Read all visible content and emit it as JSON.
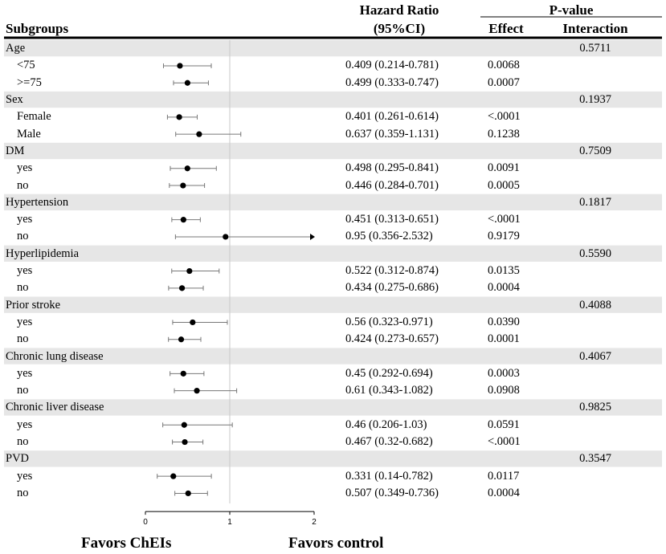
{
  "header": {
    "subgroups": "Subgroups",
    "hr_line1": "Hazard Ratio",
    "hr_line2": "(95%CI)",
    "pvalue": "P-value",
    "effect": "Effect",
    "interaction": "Interaction"
  },
  "footer": {
    "left": "Favors ChEIs",
    "right": "Favors control"
  },
  "chart_data": {
    "type": "forest",
    "xlim": [
      0,
      2
    ],
    "xticks": [
      "0",
      "1",
      "2"
    ],
    "reference_line": 1,
    "groups": [
      {
        "name": "Age",
        "interaction": "0.5711",
        "rows": [
          {
            "label": "<75",
            "hr": 0.409,
            "lo": 0.214,
            "hi": 0.781,
            "hr_text": "0.409 (0.214-0.781)",
            "p": "0.0068"
          },
          {
            "label": ">=75",
            "hr": 0.499,
            "lo": 0.333,
            "hi": 0.747,
            "hr_text": "0.499 (0.333-0.747)",
            "p": "0.0007"
          }
        ]
      },
      {
        "name": "Sex",
        "interaction": "0.1937",
        "rows": [
          {
            "label": "Female",
            "hr": 0.401,
            "lo": 0.261,
            "hi": 0.614,
            "hr_text": "0.401 (0.261-0.614)",
            "p": "<.0001"
          },
          {
            "label": "Male",
            "hr": 0.637,
            "lo": 0.359,
            "hi": 1.131,
            "hr_text": "0.637 (0.359-1.131)",
            "p": "0.1238"
          }
        ]
      },
      {
        "name": "DM",
        "interaction": "0.7509",
        "rows": [
          {
            "label": "yes",
            "hr": 0.498,
            "lo": 0.295,
            "hi": 0.841,
            "hr_text": "0.498 (0.295-0.841)",
            "p": "0.0091"
          },
          {
            "label": "no",
            "hr": 0.446,
            "lo": 0.284,
            "hi": 0.701,
            "hr_text": "0.446 (0.284-0.701)",
            "p": "0.0005"
          }
        ]
      },
      {
        "name": "Hypertension",
        "interaction": "0.1817",
        "rows": [
          {
            "label": "yes",
            "hr": 0.451,
            "lo": 0.313,
            "hi": 0.651,
            "hr_text": "0.451 (0.313-0.651)",
            "p": "<.0001"
          },
          {
            "label": "no",
            "hr": 0.95,
            "lo": 0.356,
            "hi": 2.532,
            "hr_text": "0.95 (0.356-2.532)",
            "p": "0.9179"
          }
        ]
      },
      {
        "name": "Hyperlipidemia",
        "interaction": "0.5590",
        "rows": [
          {
            "label": "yes",
            "hr": 0.522,
            "lo": 0.312,
            "hi": 0.874,
            "hr_text": "0.522 (0.312-0.874)",
            "p": "0.0135"
          },
          {
            "label": "no",
            "hr": 0.434,
            "lo": 0.275,
            "hi": 0.686,
            "hr_text": "0.434 (0.275-0.686)",
            "p": "0.0004"
          }
        ]
      },
      {
        "name": "Prior stroke",
        "interaction": "0.4088",
        "rows": [
          {
            "label": "yes",
            "hr": 0.56,
            "lo": 0.323,
            "hi": 0.971,
            "hr_text": "0.56 (0.323-0.971)",
            "p": "0.0390"
          },
          {
            "label": "no",
            "hr": 0.424,
            "lo": 0.273,
            "hi": 0.657,
            "hr_text": "0.424 (0.273-0.657)",
            "p": "0.0001"
          }
        ]
      },
      {
        "name": "Chronic lung disease",
        "interaction": "0.4067",
        "rows": [
          {
            "label": "yes",
            "hr": 0.45,
            "lo": 0.292,
            "hi": 0.694,
            "hr_text": "0.45 (0.292-0.694)",
            "p": "0.0003"
          },
          {
            "label": "no",
            "hr": 0.61,
            "lo": 0.343,
            "hi": 1.082,
            "hr_text": "0.61 (0.343-1.082)",
            "p": "0.0908"
          }
        ]
      },
      {
        "name": "Chronic liver disease",
        "interaction": "0.9825",
        "rows": [
          {
            "label": "yes",
            "hr": 0.46,
            "lo": 0.206,
            "hi": 1.03,
            "hr_text": "0.46 (0.206-1.03)",
            "p": "0.0591"
          },
          {
            "label": "no",
            "hr": 0.467,
            "lo": 0.32,
            "hi": 0.682,
            "hr_text": "0.467 (0.32-0.682)",
            "p": "<.0001"
          }
        ]
      },
      {
        "name": "PVD",
        "interaction": "0.3547",
        "rows": [
          {
            "label": "yes",
            "hr": 0.331,
            "lo": 0.14,
            "hi": 0.782,
            "hr_text": "0.331 (0.14-0.782)",
            "p": "0.0117"
          },
          {
            "label": "no",
            "hr": 0.507,
            "lo": 0.349,
            "hi": 0.736,
            "hr_text": "0.507 (0.349-0.736)",
            "p": "0.0004"
          }
        ]
      }
    ]
  }
}
